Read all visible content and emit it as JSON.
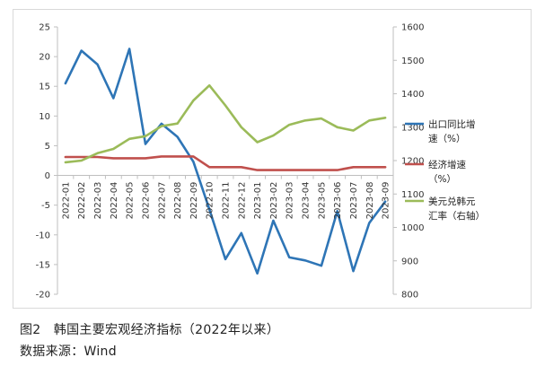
{
  "chart_data": {
    "type": "line",
    "x": [
      "2022-01",
      "2022-02",
      "2022-03",
      "2022-04",
      "2022-05",
      "2022-06",
      "2022-07",
      "2022-08",
      "2022-09",
      "2022-10",
      "2022-11",
      "2022-12",
      "2023-01",
      "2023-02",
      "2023-03",
      "2023-04",
      "2023-05",
      "2023-06",
      "2023-07",
      "2023-08",
      "2023-09"
    ],
    "left_axis": {
      "ylim": [
        -20,
        25
      ],
      "ticks": [
        25,
        20,
        15,
        10,
        5,
        0,
        -5,
        -10,
        -15,
        -20
      ]
    },
    "right_axis": {
      "ylim": [
        800,
        1600
      ],
      "ticks": [
        1600,
        1500,
        1400,
        1300,
        1200,
        1100,
        1000,
        900,
        800
      ]
    },
    "series": [
      {
        "name": "出口同比增速（%）",
        "legend_lines": [
          "出口同比增",
          "速（%）"
        ],
        "axis": "left",
        "color": "#2e75b6",
        "values": [
          15.5,
          21,
          18.7,
          13,
          21.3,
          5.3,
          8.7,
          6.5,
          2.3,
          -5.7,
          -14.1,
          -9.7,
          -16.5,
          -7.6,
          -13.8,
          -14.3,
          -15.2,
          -6.0,
          -16.1,
          -8.0,
          -4.4
        ]
      },
      {
        "name": "经济增速（%）",
        "legend_lines": [
          "经济增速",
          "（%）"
        ],
        "axis": "left",
        "color": "#c0504d",
        "values": [
          3.1,
          3.1,
          3.1,
          2.9,
          2.9,
          2.9,
          3.2,
          3.2,
          3.2,
          1.4,
          1.4,
          1.4,
          0.9,
          0.9,
          0.9,
          0.9,
          0.9,
          0.9,
          1.4,
          1.4,
          1.4
        ]
      },
      {
        "name": "美元兑韩元汇率（右轴）",
        "legend_lines": [
          "美元兑韩元",
          "汇率（右轴）"
        ],
        "axis": "right",
        "color": "#9bbb59",
        "values": [
          1195,
          1200,
          1222,
          1235,
          1265,
          1273,
          1303,
          1311,
          1380,
          1425,
          1365,
          1300,
          1255,
          1275,
          1307,
          1320,
          1326,
          1300,
          1290,
          1320,
          1328
        ]
      }
    ]
  },
  "caption": "图2　韩国主要宏观经济指标（2022年以来）",
  "source": "数据来源：Wind"
}
